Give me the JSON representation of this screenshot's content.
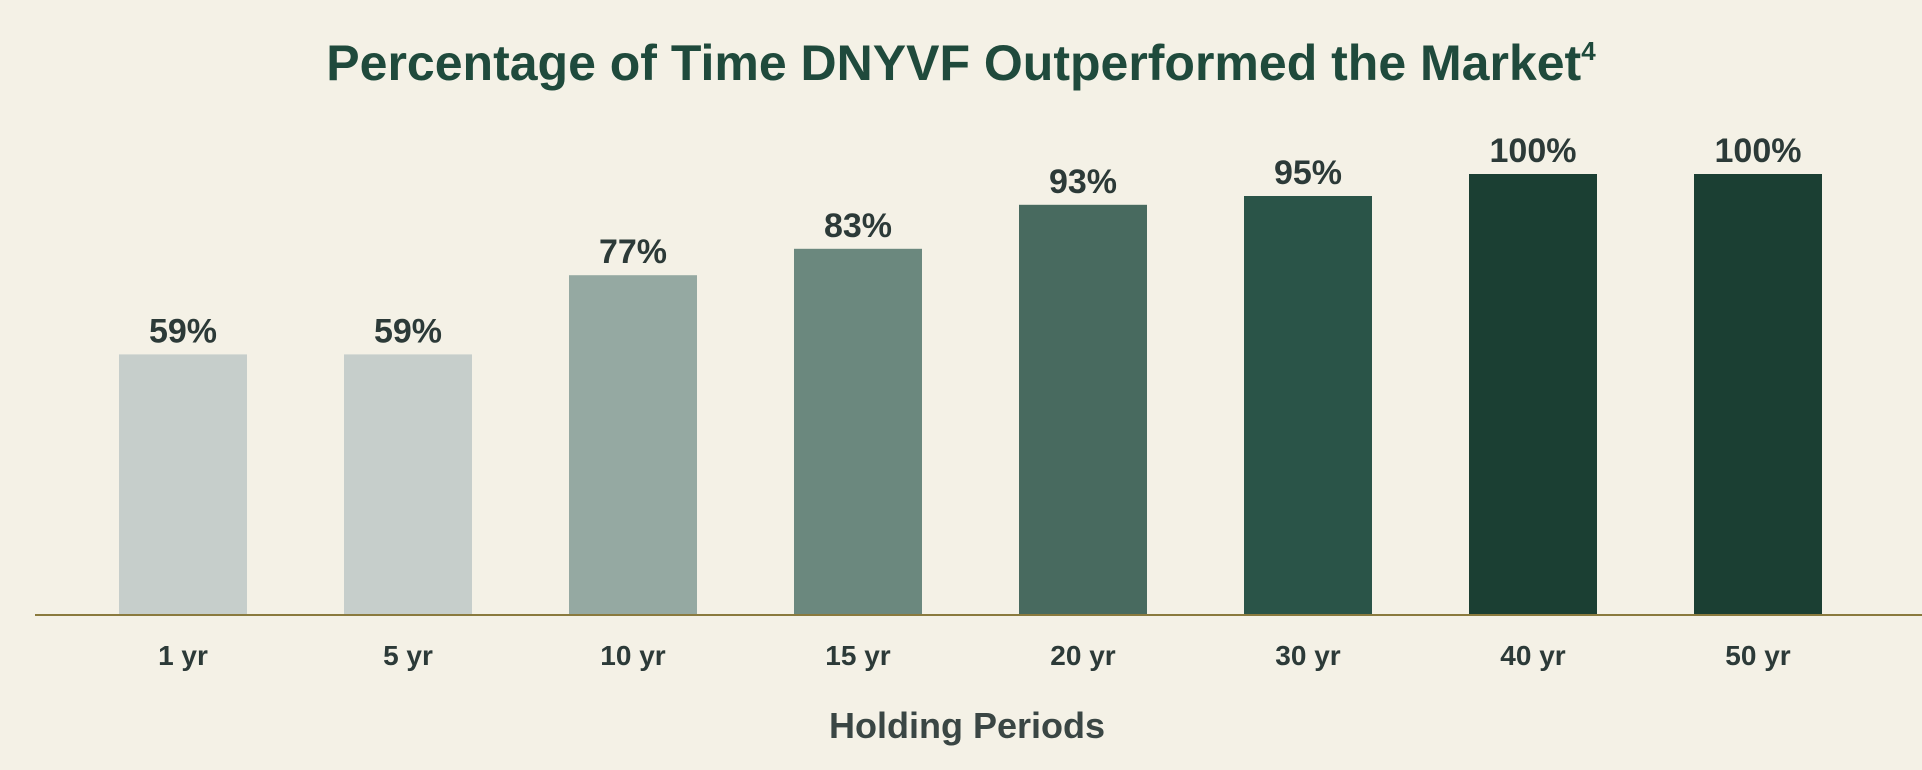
{
  "chart_data": {
    "type": "bar",
    "title": "Percentage of Time DNYVF Outperformed the Market",
    "title_superscript": "4",
    "xlabel": "Holding Periods",
    "ylabel": "",
    "categories": [
      "1 yr",
      "5 yr",
      "10 yr",
      "15 yr",
      "20 yr",
      "30 yr",
      "40 yr",
      "50 yr"
    ],
    "values": [
      59,
      59,
      77,
      83,
      93,
      95,
      100,
      100
    ],
    "value_labels": [
      "59%",
      "59%",
      "77%",
      "83%",
      "93%",
      "95%",
      "100%",
      "100%"
    ],
    "ylim": [
      0,
      100
    ],
    "grid": false,
    "legend": "none",
    "bar_colors": [
      "#c6cecb",
      "#c6cecb",
      "#95a9a2",
      "#6b887e",
      "#486a5f",
      "#2a5448",
      "#1b3f33",
      "#1b3f33"
    ],
    "axis_line_color": "#8a7a3e",
    "background_color": "#f4f1e6"
  }
}
